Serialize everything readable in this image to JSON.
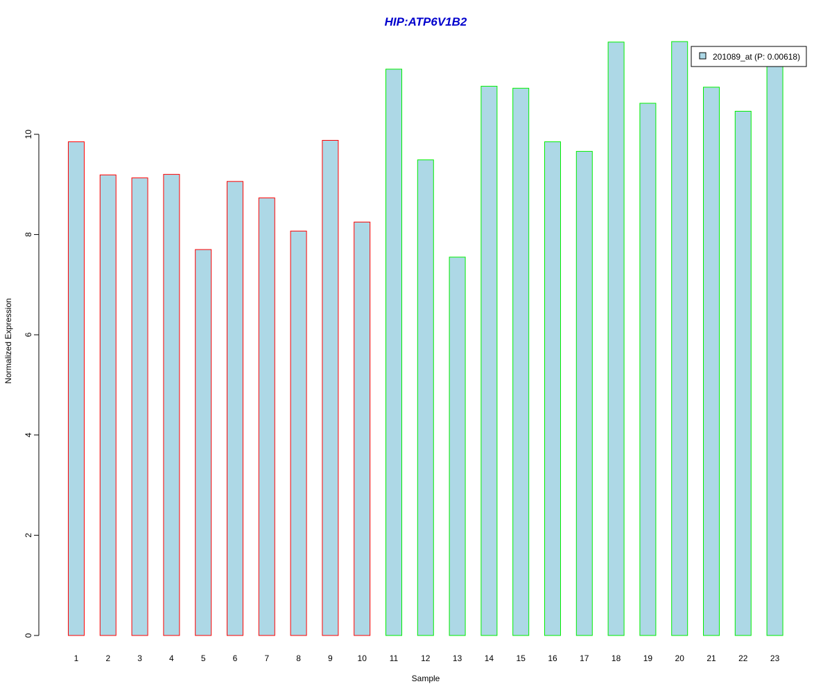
{
  "chart_data": {
    "type": "bar",
    "title": "HIP:ATP6V1B2",
    "xlabel": "Sample",
    "ylabel": "Normalized Expression",
    "categories": [
      "1",
      "2",
      "3",
      "4",
      "5",
      "6",
      "7",
      "8",
      "9",
      "10",
      "11",
      "12",
      "13",
      "14",
      "15",
      "16",
      "17",
      "18",
      "19",
      "20",
      "21",
      "22",
      "23"
    ],
    "series": [
      {
        "name": "201089_at (P: 0.00618)",
        "values": [
          9.85,
          9.19,
          9.13,
          9.2,
          7.7,
          9.06,
          8.73,
          8.07,
          9.88,
          8.25,
          11.3,
          9.49,
          7.55,
          10.96,
          10.92,
          9.85,
          9.66,
          11.84,
          10.62,
          11.85,
          10.94,
          10.46,
          11.44
        ]
      }
    ],
    "groups": [
      {
        "categories": [
          "1",
          "2",
          "3",
          "4",
          "5",
          "6",
          "7",
          "8",
          "9",
          "10"
        ],
        "border_color": "#ff0000"
      },
      {
        "categories": [
          "11",
          "12",
          "13",
          "14",
          "15",
          "16",
          "17",
          "18",
          "19",
          "20",
          "21",
          "22",
          "23"
        ],
        "border_color": "#00ee00"
      }
    ],
    "ylim": [
      0,
      11.85
    ],
    "yticks": [
      0,
      2,
      4,
      6,
      8,
      10
    ],
    "grid": false,
    "legend_position": "top-right",
    "colors": {
      "bar_fill": "#add8e6",
      "title": "#0000cd",
      "group1_border": "#ff0000",
      "group2_border": "#00ee00"
    }
  }
}
